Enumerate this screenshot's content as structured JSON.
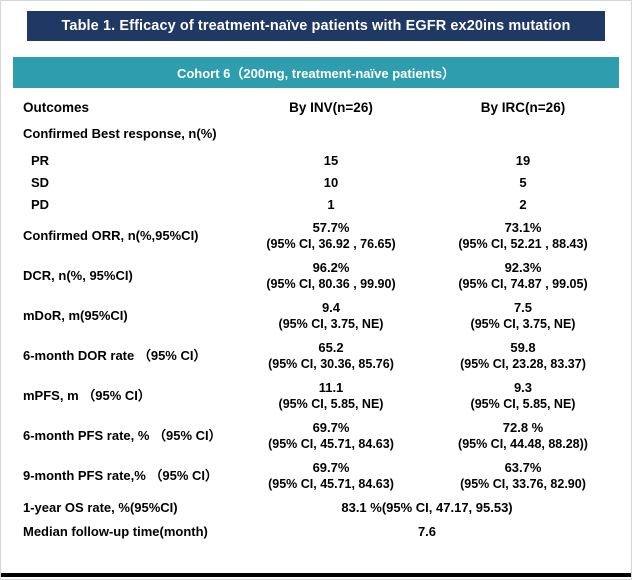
{
  "page": {
    "title": "Table 1. Efficacy of treatment-naïve patients with EGFR ex20ins mutation",
    "cohort_header": "Cohort 6（200mg, treatment-naïve patients）"
  },
  "colors": {
    "title_bg": "#1f3864",
    "cohort_bg": "#2e9eae",
    "header_text": "#ffffff",
    "body_text": "#000000"
  },
  "chart_data": {
    "type": "table",
    "title": "Table 1. Efficacy of treatment-naïve patients with EGFR ex20ins mutation",
    "subtitle": "Cohort 6（200mg, treatment-naïve patients）",
    "columns": [
      "Outcomes",
      "By INV(n=26)",
      "By IRC(n=26)"
    ],
    "rows": [
      {
        "kind": "section",
        "label": "Confirmed Best response, n(%)"
      },
      {
        "kind": "data",
        "indent": true,
        "label": "PR",
        "inv": [
          "15"
        ],
        "irc": [
          "19"
        ]
      },
      {
        "kind": "data",
        "indent": true,
        "label": "SD",
        "inv": [
          "10"
        ],
        "irc": [
          "5"
        ]
      },
      {
        "kind": "data",
        "indent": true,
        "label": "PD",
        "inv": [
          "1"
        ],
        "irc": [
          "2"
        ]
      },
      {
        "kind": "data",
        "label": "Confirmed ORR, n(%,95%CI)",
        "inv": [
          "57.7%",
          "(95% CI, 36.92 , 76.65)"
        ],
        "irc": [
          "73.1%",
          "(95% CI, 52.21 , 88.43)"
        ]
      },
      {
        "kind": "data",
        "label": "DCR, n(%, 95%CI)",
        "inv": [
          "96.2%",
          "(95% CI, 80.36 , 99.90)"
        ],
        "irc": [
          "92.3%",
          "(95% CI, 74.87 , 99.05)"
        ]
      },
      {
        "kind": "data",
        "label": "mDoR, m(95%CI)",
        "inv": [
          "9.4",
          "(95% CI, 3.75, NE)"
        ],
        "irc": [
          "7.5",
          "(95% CI, 3.75, NE)"
        ]
      },
      {
        "kind": "data",
        "label": "6-month DOR rate （95% CI）",
        "inv": [
          "65.2",
          "(95% CI, 30.36, 85.76)"
        ],
        "irc": [
          "59.8",
          "(95% CI, 23.28, 83.37)"
        ]
      },
      {
        "kind": "data",
        "label": "mPFS, m （95% CI）",
        "inv": [
          "11.1",
          "(95% CI, 5.85, NE)"
        ],
        "irc": [
          "9.3",
          "(95% CI, 5.85, NE)"
        ]
      },
      {
        "kind": "data",
        "label": "6-month PFS rate, % （95% CI）",
        "inv": [
          "69.7%",
          "(95% CI, 45.71, 84.63)"
        ],
        "irc": [
          "72.8 %",
          "(95% CI, 44.48, 88.28))"
        ]
      },
      {
        "kind": "data",
        "label": "9-month PFS rate,% （95% CI）",
        "inv": [
          "69.7%",
          "(95% CI, 45.71, 84.63)"
        ],
        "irc": [
          "63.7%",
          "(95% CI, 33.76, 82.90)"
        ]
      },
      {
        "kind": "span",
        "label": "1-year OS rate, %(95%CI)",
        "value": "83.1 %(95% CI, 47.17, 95.53)"
      },
      {
        "kind": "span",
        "label": "Median follow-up time(month)",
        "value": "7.6"
      }
    ]
  }
}
